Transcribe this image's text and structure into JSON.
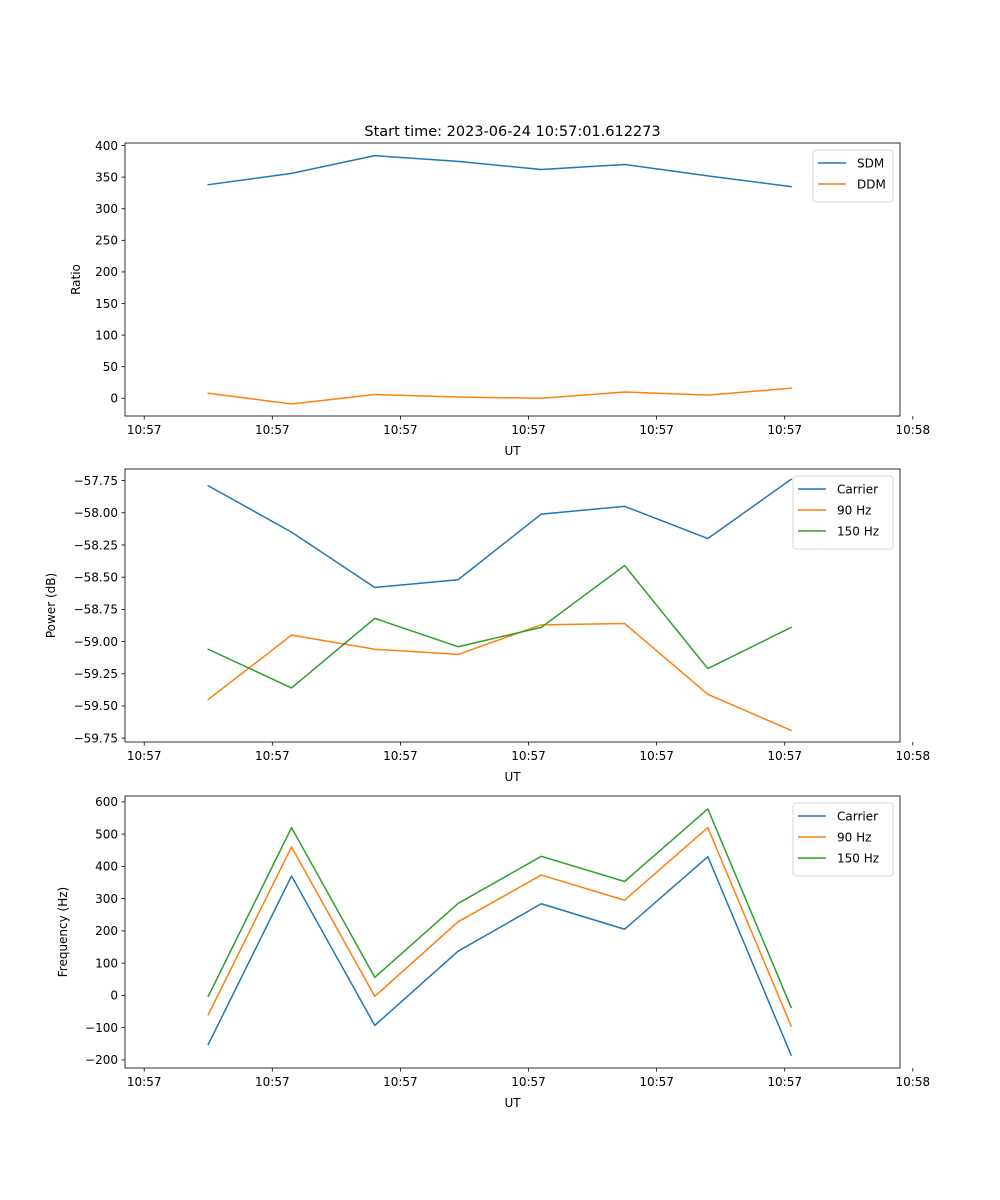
{
  "chart_data": [
    {
      "type": "line",
      "title": "Start time: 2023-06-24 10:57:01.612273",
      "xlabel": "UT",
      "ylabel": "Ratio",
      "x": [
        0.5,
        1.15,
        1.8,
        2.45,
        3.1,
        3.75,
        4.4,
        5.05
      ],
      "xlim": [
        -0.15,
        5.9
      ],
      "xticks": [
        0,
        1,
        2,
        3,
        4,
        5,
        6
      ],
      "xtick_labels": [
        "10:57",
        "10:57",
        "10:57",
        "10:57",
        "10:57",
        "10:57",
        "10:58"
      ],
      "ylim": [
        -28,
        404
      ],
      "yticks": [
        0,
        50,
        100,
        150,
        200,
        250,
        300,
        350,
        400
      ],
      "ytick_labels": [
        "0",
        "50",
        "100",
        "150",
        "200",
        "250",
        "300",
        "350",
        "400"
      ],
      "grid": false,
      "legend": "top-right",
      "series": [
        {
          "name": "SDM",
          "color": "#1f77b4",
          "values": [
            338,
            356,
            384,
            375,
            362,
            370,
            352,
            335
          ]
        },
        {
          "name": "DDM",
          "color": "#ff7f0e",
          "values": [
            8,
            -9,
            6,
            2,
            0,
            10,
            5,
            16
          ]
        }
      ]
    },
    {
      "type": "line",
      "title": "",
      "xlabel": "UT",
      "ylabel": "Power (dB)",
      "x": [
        0.5,
        1.15,
        1.8,
        2.45,
        3.1,
        3.75,
        4.4,
        5.05
      ],
      "xlim": [
        -0.15,
        5.9
      ],
      "xticks": [
        0,
        1,
        2,
        3,
        4,
        5,
        6
      ],
      "xtick_labels": [
        "10:57",
        "10:57",
        "10:57",
        "10:57",
        "10:57",
        "10:57",
        "10:58"
      ],
      "ylim": [
        -59.78,
        -57.66
      ],
      "yticks": [
        -59.75,
        -59.5,
        -59.25,
        -59.0,
        -58.75,
        -58.5,
        -58.25,
        -58.0,
        -57.75
      ],
      "ytick_labels": [
        "−59.75",
        "−59.50",
        "−59.25",
        "−59.00",
        "−58.75",
        "−58.50",
        "−58.25",
        "−58.00",
        "−57.75"
      ],
      "grid": false,
      "legend": "top-right",
      "series": [
        {
          "name": "Carrier",
          "color": "#1f77b4",
          "values": [
            -57.79,
            -58.15,
            -58.58,
            -58.52,
            -58.01,
            -57.95,
            -58.2,
            -57.74
          ]
        },
        {
          "name": "90 Hz",
          "color": "#ff7f0e",
          "values": [
            -59.45,
            -58.95,
            -59.06,
            -59.1,
            -58.87,
            -58.86,
            -59.41,
            -59.69
          ]
        },
        {
          "name": "150 Hz",
          "color": "#2ca02c",
          "values": [
            -59.06,
            -59.36,
            -58.82,
            -59.04,
            -58.89,
            -58.41,
            -59.21,
            -58.89
          ]
        }
      ]
    },
    {
      "type": "line",
      "title": "",
      "xlabel": "UT",
      "ylabel": "Frequency (Hz)",
      "x": [
        0.5,
        1.15,
        1.8,
        2.45,
        3.1,
        3.75,
        4.4,
        5.05
      ],
      "xlim": [
        -0.15,
        5.9
      ],
      "xticks": [
        0,
        1,
        2,
        3,
        4,
        5,
        6
      ],
      "xtick_labels": [
        "10:57",
        "10:57",
        "10:57",
        "10:57",
        "10:57",
        "10:57",
        "10:58"
      ],
      "ylim": [
        -225,
        618
      ],
      "yticks": [
        -200,
        -100,
        0,
        100,
        200,
        300,
        400,
        500,
        600
      ],
      "ytick_labels": [
        "−200",
        "−100",
        "0",
        "100",
        "200",
        "300",
        "400",
        "500",
        "600"
      ],
      "grid": false,
      "legend": "top-right",
      "series": [
        {
          "name": "Carrier",
          "color": "#1f77b4",
          "values": [
            -152,
            370,
            -93,
            137,
            284,
            205,
            430,
            -185
          ]
        },
        {
          "name": "90 Hz",
          "color": "#ff7f0e",
          "values": [
            -60,
            460,
            -3,
            228,
            373,
            295,
            520,
            -95
          ]
        },
        {
          "name": "150 Hz",
          "color": "#2ca02c",
          "values": [
            -3,
            520,
            56,
            285,
            431,
            353,
            578,
            -37
          ]
        }
      ]
    }
  ]
}
